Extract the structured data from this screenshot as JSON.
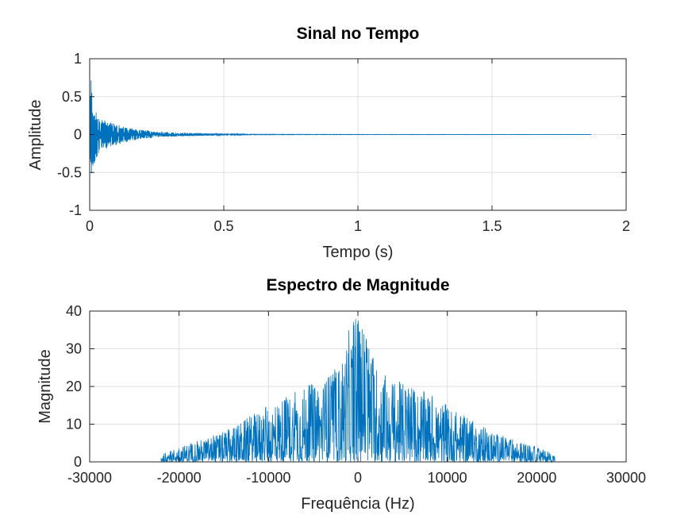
{
  "chart_data": [
    {
      "type": "line",
      "title": "Sinal no Tempo",
      "xlabel": "Tempo (s)",
      "ylabel": "Amplitude",
      "xlim": [
        0,
        2
      ],
      "ylim": [
        -1,
        1
      ],
      "xticks": [
        "0",
        "0.5",
        "1",
        "1.5",
        "2"
      ],
      "yticks": [
        "1",
        "0.5",
        "0",
        "-0.5",
        "-1"
      ],
      "grid": true,
      "color": "#0072BD",
      "series": [
        {
          "x": [
            0,
            0.005,
            0.01,
            0.02,
            0.03,
            0.05,
            0.08,
            0.1,
            0.15,
            0.2,
            0.25,
            0.3,
            0.4,
            0.5,
            0.55,
            0.6,
            1.0,
            1.5,
            1.87
          ],
          "y_max": [
            0.3,
            0.85,
            0.45,
            0.32,
            0.25,
            0.2,
            0.18,
            0.15,
            0.09,
            0.06,
            0.04,
            0.03,
            0.02,
            0.01,
            0.01,
            0.005,
            0.003,
            0.002,
            0.002
          ],
          "y_min": [
            -0.3,
            -0.65,
            -0.45,
            -0.38,
            -0.3,
            -0.2,
            -0.17,
            -0.14,
            -0.09,
            -0.06,
            -0.04,
            -0.03,
            -0.02,
            -0.01,
            -0.01,
            -0.005,
            -0.003,
            -0.002,
            -0.002
          ]
        }
      ]
    },
    {
      "type": "line",
      "title": "Espectro de Magnitude",
      "xlabel": "Frequência (Hz)",
      "ylabel": "Magnitude",
      "xlim": [
        -30000,
        30000
      ],
      "ylim": [
        0,
        40
      ],
      "xticks": [
        "-30000",
        "-20000",
        "-10000",
        "0",
        "10000",
        "20000",
        "30000"
      ],
      "yticks": [
        "40",
        "30",
        "20",
        "10",
        "0"
      ],
      "grid": true,
      "color": "#0072BD",
      "series": [
        {
          "x": [
            -22050,
            -20000,
            -15000,
            -10000,
            -8000,
            -6000,
            -4000,
            -2000,
            -1000,
            -500,
            0,
            500,
            1000,
            2000,
            4000,
            6000,
            8000,
            10000,
            15000,
            20000,
            22050
          ],
          "y_max": [
            2,
            4,
            8,
            15,
            18,
            20,
            22,
            26,
            35,
            38,
            38,
            38,
            35,
            26,
            22,
            20,
            18,
            15,
            8,
            4,
            2
          ]
        }
      ]
    }
  ]
}
